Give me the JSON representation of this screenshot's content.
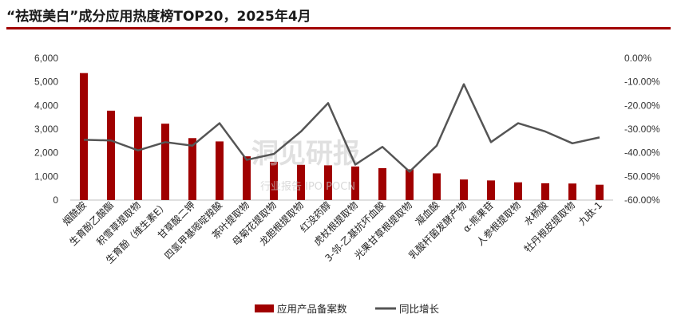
{
  "chart_data": {
    "type": "bar+line",
    "title": "“祛斑美白”成分应用热度榜TOP20，2025年4月",
    "categories": [
      "烟酰胺",
      "生育酚乙酸酯",
      "积雪草提取物",
      "生育酚（维生素E）",
      "甘草酸二钾",
      "四氢甲基嘧啶羧酸",
      "茶叶提取物",
      "母菊花提取物",
      "龙胆根提取物",
      "红没药醇",
      "虎杖根提取物",
      "3-邻-乙基抗坏血酸",
      "光果甘草根提取物",
      "凝血酸",
      "乳酸杆菌发酵产物",
      "α-熊果苷",
      "人参根提取物",
      "水杨酸",
      "牡丹根皮提取物",
      "九肽-1"
    ],
    "series": [
      {
        "name": "应用产品备案数",
        "axis": "left",
        "type": "bar",
        "color": "#a00000",
        "values": [
          5370,
          3780,
          3520,
          3230,
          2620,
          2480,
          1850,
          1620,
          1490,
          1470,
          1420,
          1350,
          1300,
          1130,
          870,
          830,
          750,
          710,
          700,
          650
        ]
      },
      {
        "name": "同比增长",
        "axis": "right",
        "type": "line",
        "color": "#555555",
        "values": [
          -34.5,
          -34.8,
          -39.0,
          -35.5,
          -37.0,
          -27.5,
          -43.0,
          -40.5,
          -31.0,
          -19.0,
          -45.0,
          -37.5,
          -48.0,
          -37.0,
          -11.0,
          -35.5,
          -27.5,
          -31.0,
          -36.0,
          -33.5
        ]
      }
    ],
    "y_left": {
      "min": 0,
      "max": 6000,
      "ticks": [
        "0",
        "1,000",
        "2,000",
        "3,000",
        "4,000",
        "5,000",
        "6,000"
      ]
    },
    "y_right": {
      "min": -60,
      "max": 0,
      "ticks": [
        "-60.00%",
        "-50.00%",
        "-40.00%",
        "-30.00%",
        "-20.00%",
        "-10.00%",
        "0.00%"
      ]
    },
    "grid": false,
    "legend_position": "bottom"
  },
  "watermark": {
    "line1": "洞见研报",
    "line2": "行业报告 IPO POCN"
  }
}
